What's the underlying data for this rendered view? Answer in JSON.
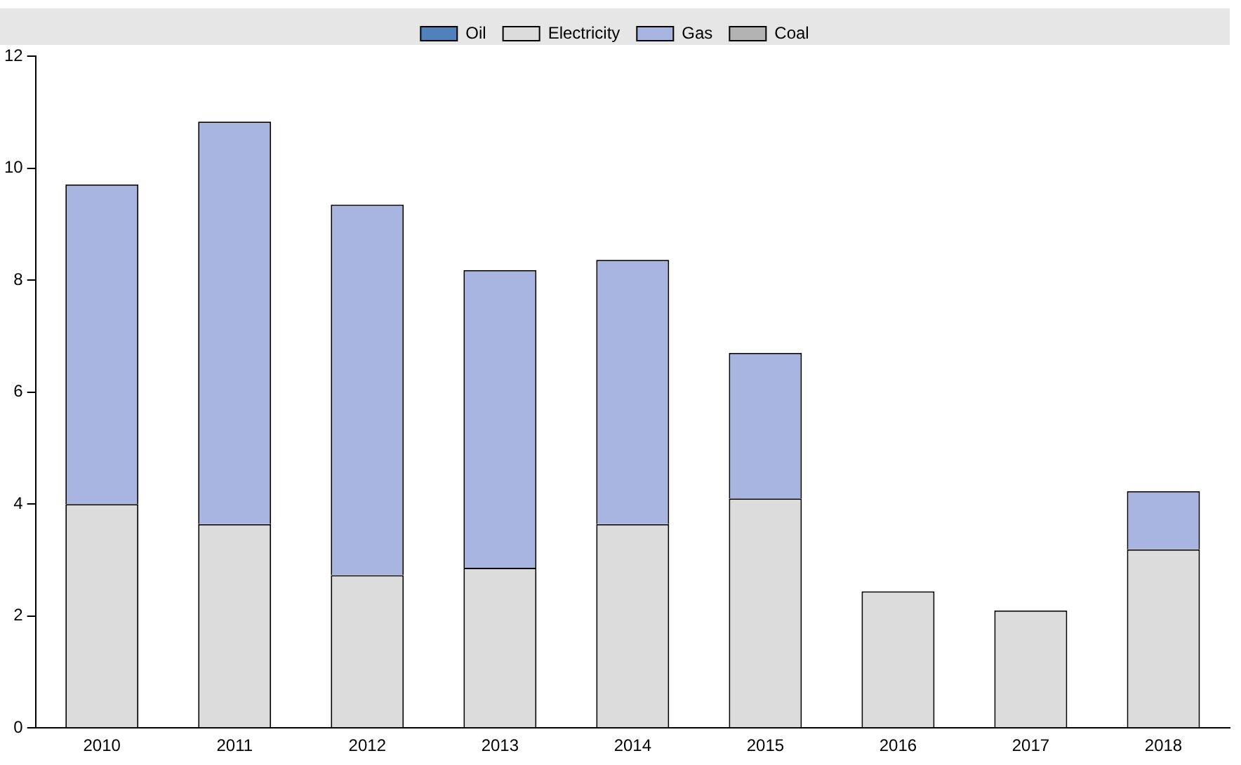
{
  "chart_data": {
    "type": "bar",
    "stacked": true,
    "categories": [
      "2010",
      "2011",
      "2012",
      "2013",
      "2014",
      "2015",
      "2016",
      "2017",
      "2018"
    ],
    "series": [
      {
        "name": "Oil",
        "color": "#4f81bd",
        "values": [
          0,
          0,
          0,
          0,
          0,
          0,
          0,
          0,
          0
        ]
      },
      {
        "name": "Electricity",
        "color": "#dcdcdc",
        "values": [
          4.0,
          3.64,
          2.73,
          2.86,
          3.64,
          4.1,
          2.44,
          2.1,
          3.19
        ]
      },
      {
        "name": "Gas",
        "color": "#a7b5e0",
        "values": [
          5.71,
          7.19,
          6.62,
          5.32,
          4.72,
          2.6,
          0,
          0,
          1.04
        ]
      },
      {
        "name": "Coal",
        "color": "#b3b3b3",
        "values": [
          0,
          0,
          0,
          0,
          0,
          0,
          0,
          0,
          0
        ]
      }
    ],
    "ylim": [
      0,
      12
    ],
    "yticks": [
      0,
      2,
      4,
      6,
      8,
      10,
      12
    ],
    "grid": false,
    "legend": "top"
  }
}
